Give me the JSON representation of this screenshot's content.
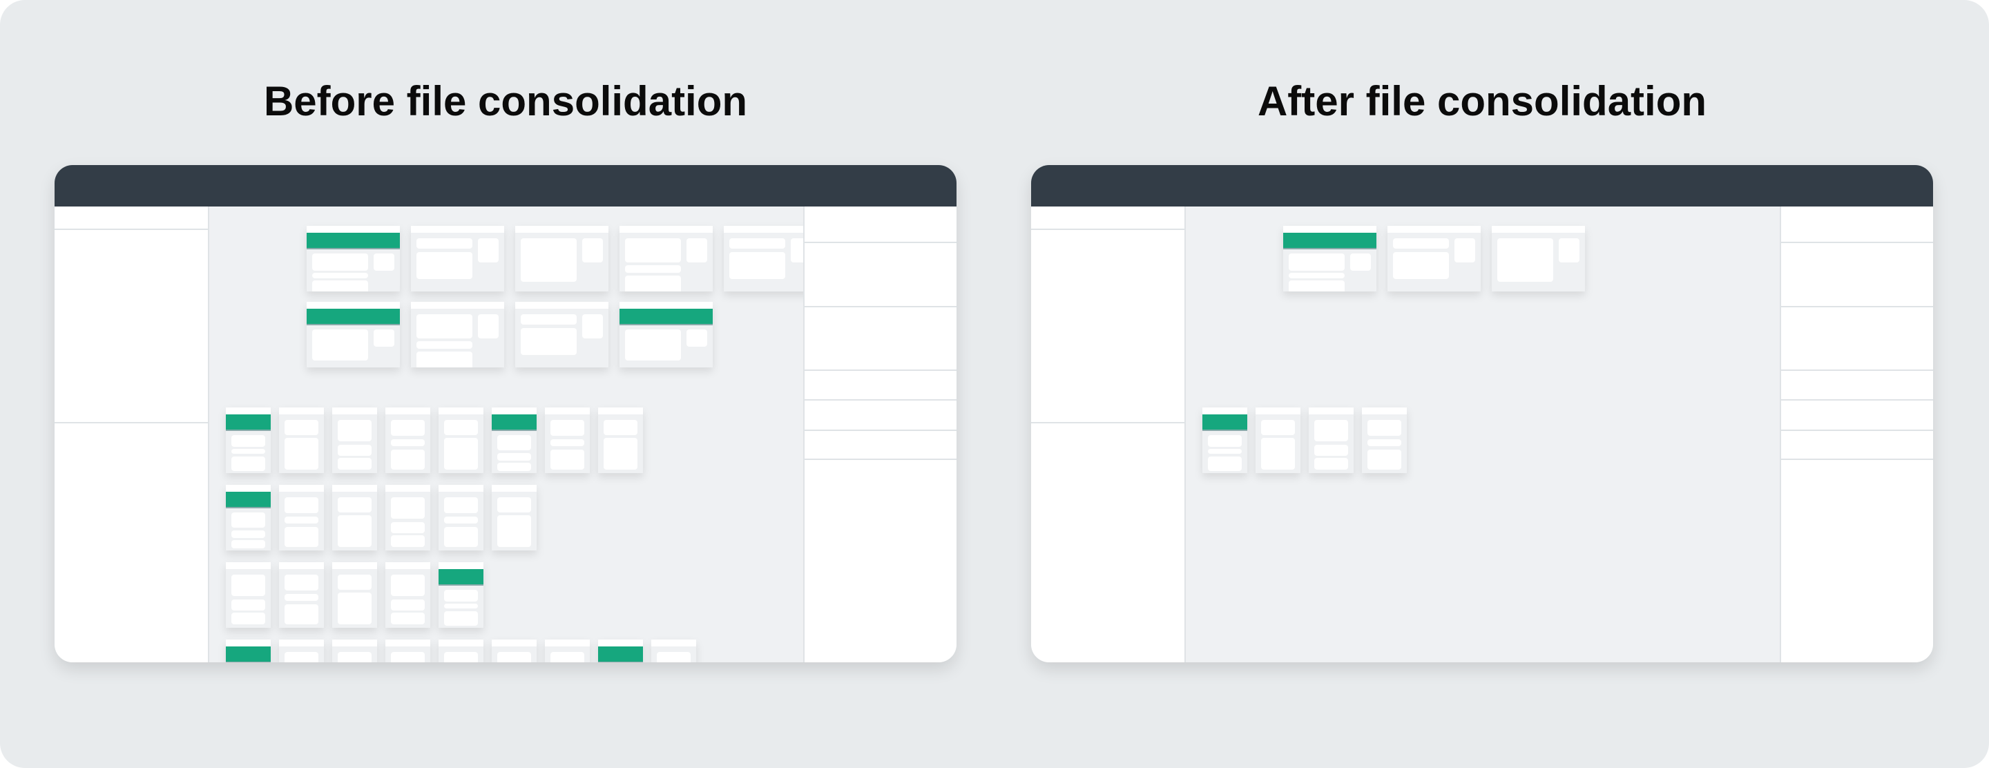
{
  "before": {
    "title": "Before file consolidation",
    "large_rows": [
      [
        true,
        false,
        false,
        false,
        false
      ],
      [
        true,
        false,
        false,
        true
      ]
    ],
    "small_rows": [
      [
        true,
        false,
        false,
        false,
        false,
        true,
        false,
        false
      ],
      [
        true,
        false,
        false,
        false,
        false,
        false
      ],
      [
        false,
        false,
        false,
        false,
        true
      ],
      [
        true,
        false,
        false,
        false,
        false,
        false,
        false,
        true,
        false
      ]
    ]
  },
  "after": {
    "title": "After file consolidation",
    "large_rows": [
      [
        true,
        false,
        false
      ]
    ],
    "small_rows": [
      [
        true,
        false,
        false,
        false
      ]
    ]
  },
  "colors": {
    "header": "#333d47",
    "accent": "#16a77e",
    "canvas": "#eff1f3",
    "background": "#e8ebed"
  }
}
